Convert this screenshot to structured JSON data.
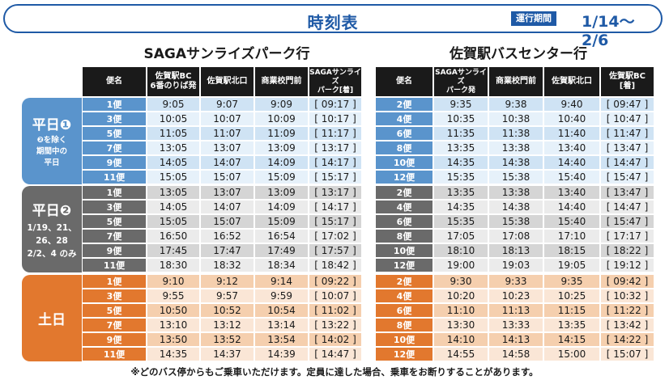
{
  "header": {
    "title": "時刻表",
    "period_label": "運行期間",
    "period_value": "1/14〜2/6"
  },
  "left": {
    "direction_title": "SAGAサンライズパーク行",
    "columns": [
      "便名",
      "佐賀駅BC\n6番のりば発",
      "佐賀駅北口",
      "商業校門前",
      "SAGAサンライズ\nパーク[着]"
    ]
  },
  "right": {
    "direction_title": "佐賀駅バスセンター行",
    "columns": [
      "便名",
      "SAGAサンライズ\nパーク発",
      "商業校門前",
      "佐賀駅北口",
      "佐賀駅BC\n[着]"
    ]
  },
  "colors": {
    "weekday1": "#5a94cc",
    "weekday1_light": "#cfe3f4",
    "weekday1_stripe": "#e6f1fa",
    "weekday2": "#6a6a6a",
    "weekday2_light": "#d5d5d5",
    "weekday2_stripe": "#ebebeb",
    "weekend": "#e2782e",
    "weekend_light": "#f5cfae",
    "weekend_stripe": "#fae6d6",
    "header": "#1a1a1a",
    "accent": "#1f5aa6"
  },
  "groups": [
    {
      "key": "weekday1",
      "label_main": "平日❶",
      "label_sub": "❷を除く\n期間中の\n平日",
      "left_rows": [
        [
          "1便",
          "9:05",
          "9:07",
          "9:09",
          "[ 09:17 ]"
        ],
        [
          "3便",
          "10:05",
          "10:07",
          "10:09",
          "[ 10:17 ]"
        ],
        [
          "5便",
          "11:05",
          "11:07",
          "11:09",
          "[ 11:17 ]"
        ],
        [
          "7便",
          "13:05",
          "13:07",
          "13:09",
          "[ 13:17 ]"
        ],
        [
          "9便",
          "14:05",
          "14:07",
          "14:09",
          "[ 14:17 ]"
        ],
        [
          "11便",
          "15:05",
          "15:07",
          "15:09",
          "[ 15:17 ]"
        ]
      ],
      "right_rows": [
        [
          "2便",
          "9:35",
          "9:38",
          "9:40",
          "[ 09:47 ]"
        ],
        [
          "4便",
          "10:35",
          "10:38",
          "10:40",
          "[ 10:47 ]"
        ],
        [
          "6便",
          "11:35",
          "11:38",
          "11:40",
          "[ 11:47 ]"
        ],
        [
          "8便",
          "13:35",
          "13:38",
          "13:40",
          "[ 13:47 ]"
        ],
        [
          "10便",
          "14:35",
          "14:38",
          "14:40",
          "[ 14:47 ]"
        ],
        [
          "12便",
          "15:35",
          "15:38",
          "15:40",
          "[ 15:47 ]"
        ]
      ]
    },
    {
      "key": "weekday2",
      "label_main": "平日❷",
      "label_sub": "1/19、21、\n26、28\n2/2、4 のみ",
      "left_rows": [
        [
          "1便",
          "13:05",
          "13:07",
          "13:09",
          "[ 13:17 ]"
        ],
        [
          "3便",
          "14:05",
          "14:07",
          "14:09",
          "[ 14:17 ]"
        ],
        [
          "5便",
          "15:05",
          "15:07",
          "15:09",
          "[ 15:17 ]"
        ],
        [
          "7便",
          "16:50",
          "16:52",
          "16:54",
          "[ 17:02 ]"
        ],
        [
          "9便",
          "17:45",
          "17:47",
          "17:49",
          "[ 17:57 ]"
        ],
        [
          "11便",
          "18:30",
          "18:32",
          "18:34",
          "[ 18:42 ]"
        ]
      ],
      "right_rows": [
        [
          "2便",
          "13:35",
          "13:38",
          "13:40",
          "[ 13:47 ]"
        ],
        [
          "4便",
          "14:35",
          "14:38",
          "14:40",
          "[ 14:47 ]"
        ],
        [
          "6便",
          "15:35",
          "15:38",
          "15:40",
          "[ 15:47 ]"
        ],
        [
          "8便",
          "17:05",
          "17:08",
          "17:10",
          "[ 17:17 ]"
        ],
        [
          "10便",
          "18:10",
          "18:13",
          "18:15",
          "[ 18:22 ]"
        ],
        [
          "12便",
          "19:00",
          "19:03",
          "19:05",
          "[ 19:12 ]"
        ]
      ]
    },
    {
      "key": "weekend",
      "label_main": "土日",
      "label_sub": "",
      "left_rows": [
        [
          "1便",
          "9:10",
          "9:12",
          "9:14",
          "[ 09:22 ]"
        ],
        [
          "3便",
          "9:55",
          "9:57",
          "9:59",
          "[ 10:07 ]"
        ],
        [
          "5便",
          "10:50",
          "10:52",
          "10:54",
          "[ 11:02 ]"
        ],
        [
          "7便",
          "13:10",
          "13:12",
          "13:14",
          "[ 13:22 ]"
        ],
        [
          "9便",
          "13:50",
          "13:52",
          "13:54",
          "[ 14:02 ]"
        ],
        [
          "11便",
          "14:35",
          "14:37",
          "14:39",
          "[ 14:47 ]"
        ]
      ],
      "right_rows": [
        [
          "2便",
          "9:30",
          "9:33",
          "9:35",
          "[ 09:42 ]"
        ],
        [
          "4便",
          "10:20",
          "10:23",
          "10:25",
          "[ 10:32 ]"
        ],
        [
          "6便",
          "11:10",
          "11:13",
          "11:15",
          "[ 11:22 ]"
        ],
        [
          "8便",
          "13:30",
          "13:33",
          "13:35",
          "[ 13:42 ]"
        ],
        [
          "10便",
          "14:10",
          "14:13",
          "14:15",
          "[ 14:22 ]"
        ],
        [
          "12便",
          "14:55",
          "14:58",
          "15:00",
          "[ 15:07 ]"
        ]
      ]
    }
  ],
  "footer": "※どのバス停からもご乗車いただけます。定員に達した場合、乗車をお断りすることがあります。"
}
